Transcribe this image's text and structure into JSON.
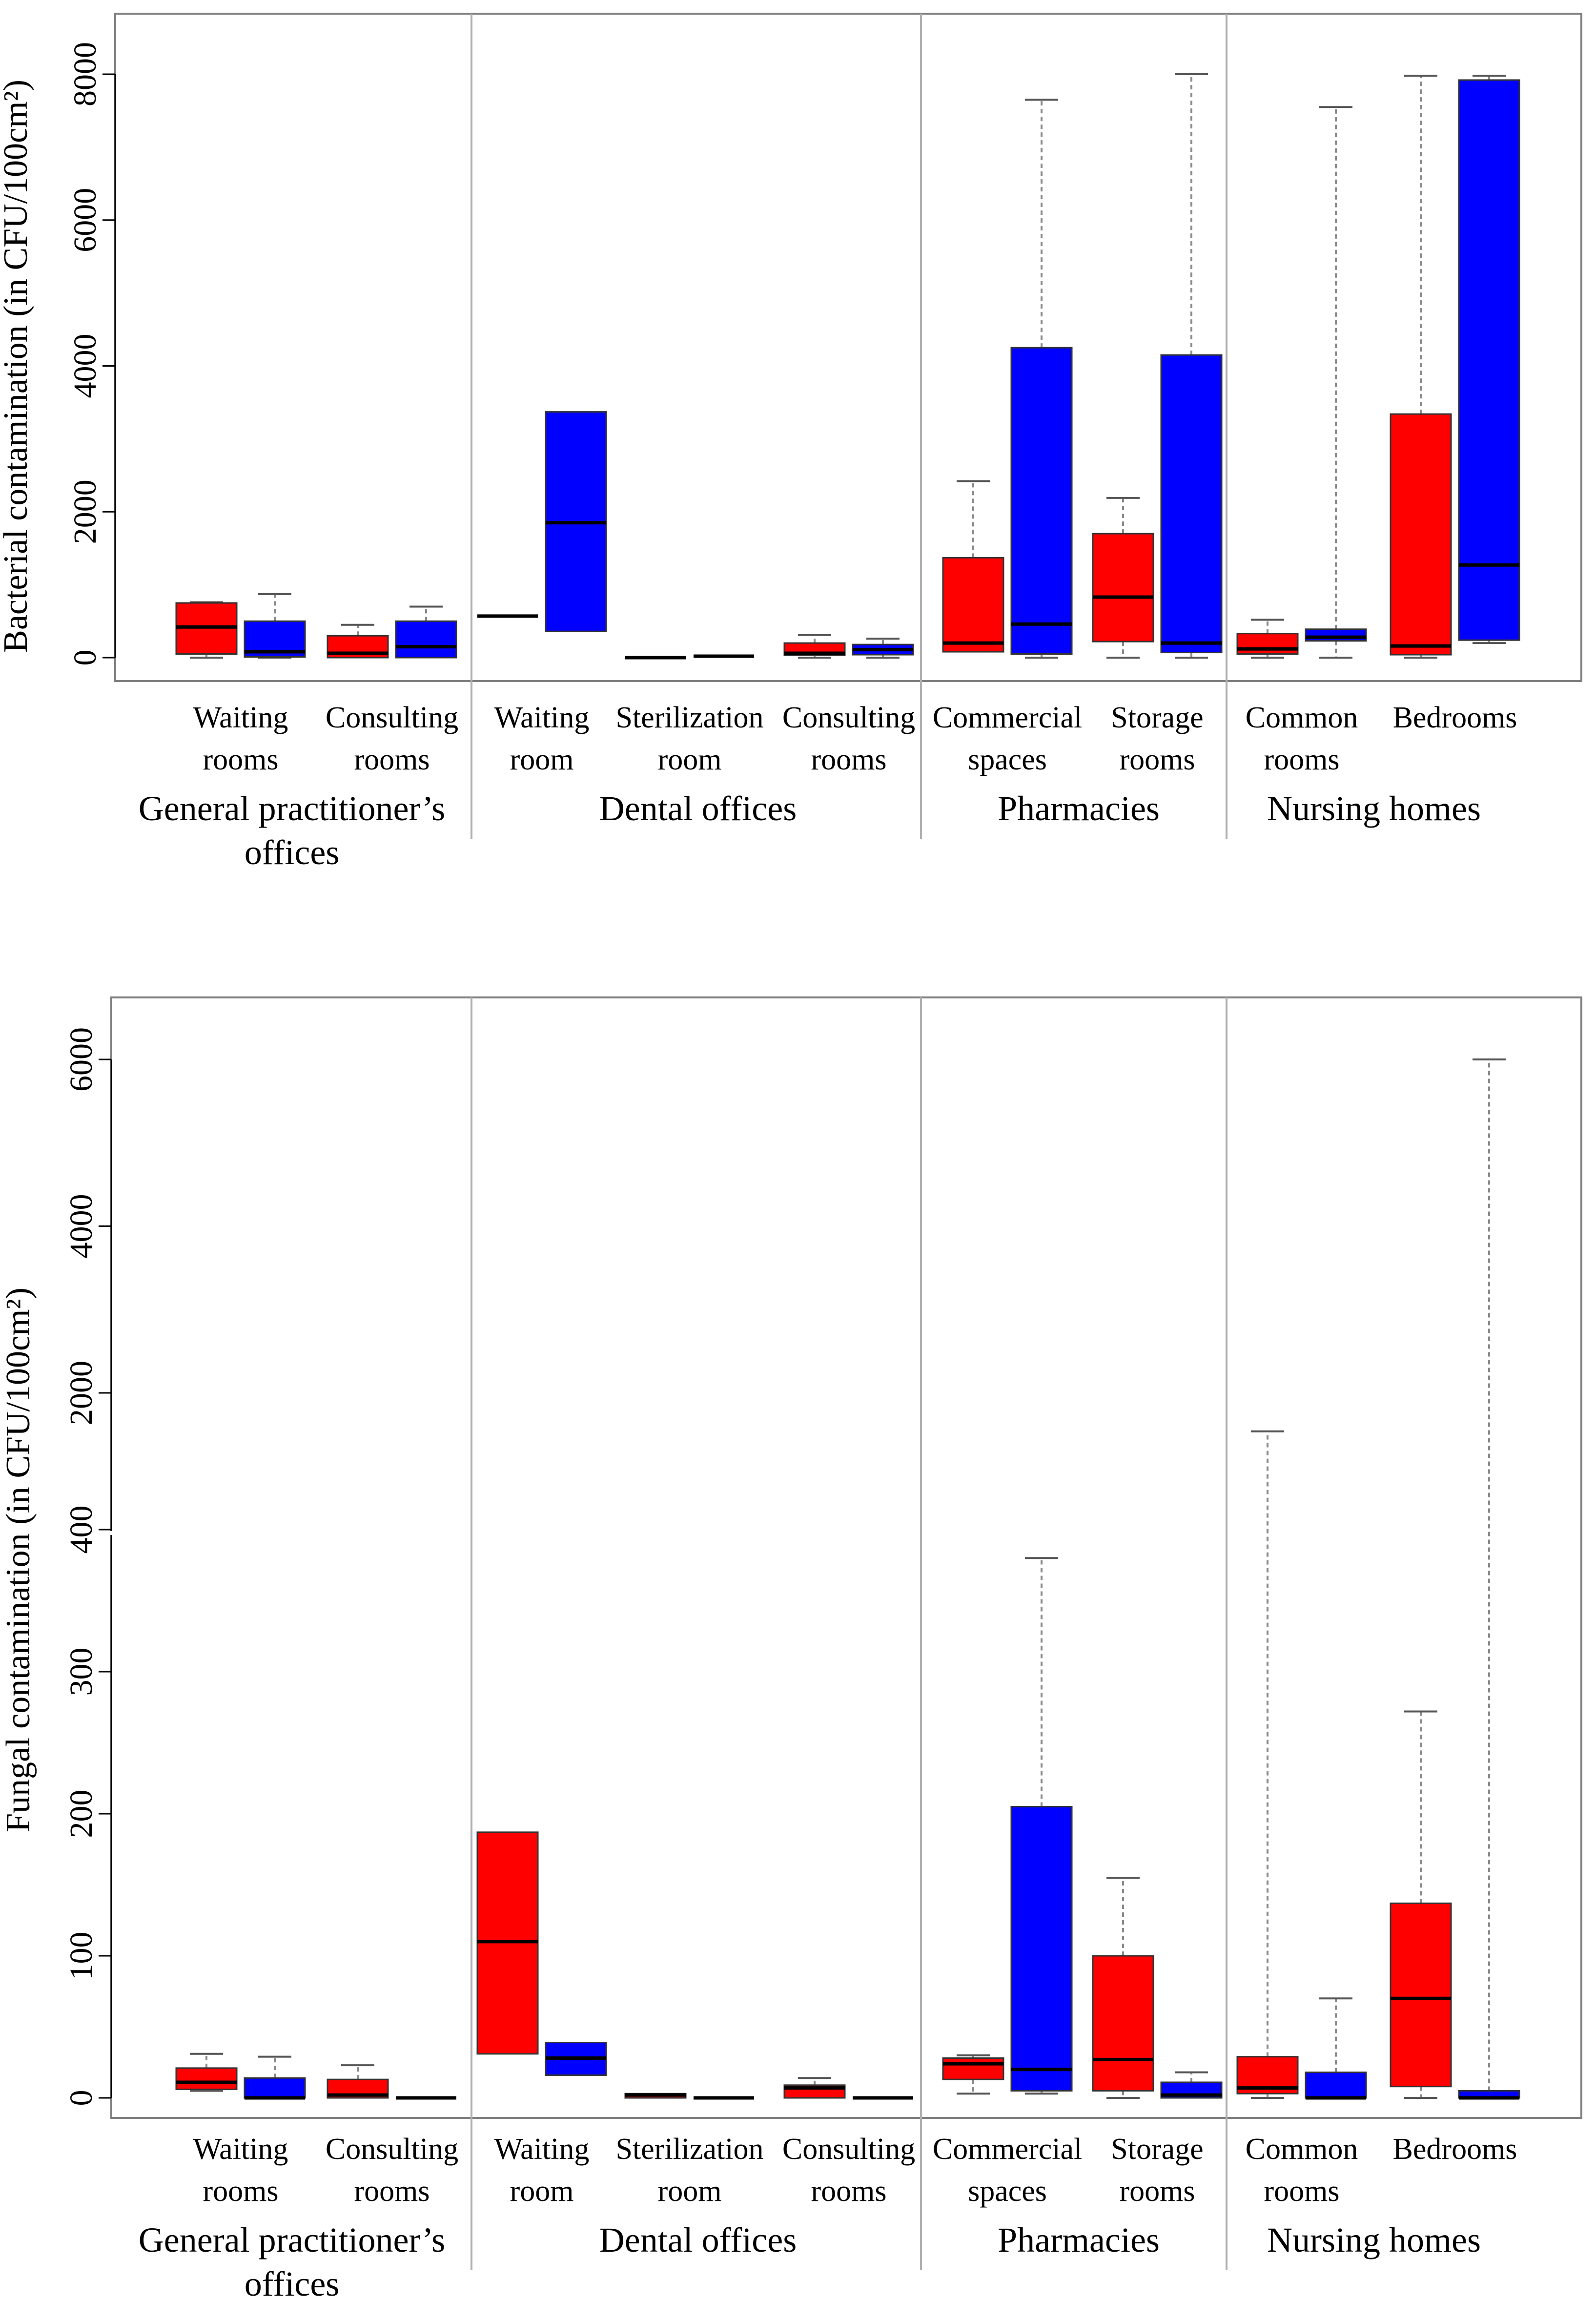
{
  "colors": {
    "red": "#ff0000",
    "blue": "#0000ff"
  },
  "chart_data": [
    {
      "type": "box",
      "ylabel": "Bacterial contamination (in CFU/100cm²)",
      "ylim": [
        0,
        8000
      ],
      "yticks": [
        0,
        2000,
        4000,
        6000,
        8000
      ],
      "groups": [
        {
          "label": "General practitioner’s offices",
          "categories": [
            {
              "label": "Waiting rooms"
            },
            {
              "label": "Consulting rooms"
            }
          ]
        },
        {
          "label": "Dental offices",
          "categories": [
            {
              "label": "Waiting room"
            },
            {
              "label": "Sterilization room"
            },
            {
              "label": "Consulting rooms"
            }
          ]
        },
        {
          "label": "Pharmacies",
          "categories": [
            {
              "label": "Commercial spaces"
            },
            {
              "label": "Storage rooms"
            }
          ]
        },
        {
          "label": "Nursing homes",
          "categories": [
            {
              "label": "Common rooms"
            },
            {
              "label": "Bedrooms"
            }
          ]
        }
      ],
      "boxes": [
        {
          "cat": 0,
          "color": "red",
          "min": 0,
          "q1": 50,
          "median": 420,
          "q3": 750,
          "max": 760
        },
        {
          "cat": 0,
          "color": "blue",
          "min": 0,
          "q1": 10,
          "median": 80,
          "q3": 500,
          "max": 870
        },
        {
          "cat": 1,
          "color": "red",
          "min": 0,
          "q1": 0,
          "median": 60,
          "q3": 300,
          "max": 450
        },
        {
          "cat": 1,
          "color": "blue",
          "min": 0,
          "q1": 0,
          "median": 150,
          "q3": 500,
          "max": 700
        },
        {
          "cat": 2,
          "color": "red",
          "min": 570,
          "q1": 570,
          "median": 570,
          "q3": 570,
          "max": 570
        },
        {
          "cat": 2,
          "color": "blue",
          "min": 360,
          "q1": 360,
          "median": 1850,
          "q3": 3370,
          "max": 3370
        },
        {
          "cat": 3,
          "color": "red",
          "min": 0,
          "q1": 0,
          "median": 0,
          "q3": 0,
          "max": 0
        },
        {
          "cat": 3,
          "color": "blue",
          "min": 20,
          "q1": 20,
          "median": 20,
          "q3": 20,
          "max": 20
        },
        {
          "cat": 4,
          "color": "red",
          "min": 0,
          "q1": 30,
          "median": 60,
          "q3": 200,
          "max": 310
        },
        {
          "cat": 4,
          "color": "blue",
          "min": 0,
          "q1": 40,
          "median": 110,
          "q3": 180,
          "max": 260
        },
        {
          "cat": 5,
          "color": "red",
          "min": 80,
          "q1": 80,
          "median": 200,
          "q3": 1370,
          "max": 2420
        },
        {
          "cat": 5,
          "color": "blue",
          "min": 0,
          "q1": 50,
          "median": 460,
          "q3": 4250,
          "max": 7650
        },
        {
          "cat": 6,
          "color": "red",
          "min": 0,
          "q1": 220,
          "median": 830,
          "q3": 1700,
          "max": 2190
        },
        {
          "cat": 6,
          "color": "blue",
          "min": 0,
          "q1": 70,
          "median": 200,
          "q3": 4150,
          "max": 8000
        },
        {
          "cat": 7,
          "color": "red",
          "min": 0,
          "q1": 50,
          "median": 120,
          "q3": 330,
          "max": 520
        },
        {
          "cat": 7,
          "color": "blue",
          "min": 0,
          "q1": 230,
          "median": 280,
          "q3": 390,
          "max": 7550
        },
        {
          "cat": 8,
          "color": "red",
          "min": 0,
          "q1": 40,
          "median": 160,
          "q3": 3340,
          "max": 7980
        },
        {
          "cat": 8,
          "color": "blue",
          "min": 200,
          "q1": 240,
          "median": 1270,
          "q3": 7920,
          "max": 7980
        }
      ]
    },
    {
      "type": "box",
      "ylabel": "Fungal contamination (in CFU/100cm²)",
      "yscale": "broken",
      "ylim": [
        0,
        6000
      ],
      "yticks": [
        0,
        100,
        200,
        300,
        400,
        2000,
        4000,
        6000
      ],
      "groups": [
        {
          "label": "General practitioner’s offices",
          "categories": [
            {
              "label": "Waiting rooms"
            },
            {
              "label": "Consulting rooms"
            }
          ]
        },
        {
          "label": "Dental offices",
          "categories": [
            {
              "label": "Waiting room"
            },
            {
              "label": "Sterilization room"
            },
            {
              "label": "Consulting rooms"
            }
          ]
        },
        {
          "label": "Pharmacies",
          "categories": [
            {
              "label": "Commercial spaces"
            },
            {
              "label": "Storage rooms"
            }
          ]
        },
        {
          "label": "Nursing homes",
          "categories": [
            {
              "label": "Common rooms"
            },
            {
              "label": "Bedrooms"
            }
          ]
        }
      ],
      "boxes": [
        {
          "cat": 0,
          "color": "red",
          "min": 5,
          "q1": 6,
          "median": 11,
          "q3": 21,
          "max": 31
        },
        {
          "cat": 0,
          "color": "blue",
          "min": 0,
          "q1": 0,
          "median": 0,
          "q3": 14,
          "max": 29
        },
        {
          "cat": 1,
          "color": "red",
          "min": 0,
          "q1": 0,
          "median": 2,
          "q3": 13,
          "max": 23
        },
        {
          "cat": 1,
          "color": "blue",
          "min": 0,
          "q1": 0,
          "median": 0,
          "q3": 0,
          "max": 0
        },
        {
          "cat": 2,
          "color": "red",
          "min": 31,
          "q1": 31,
          "median": 110,
          "q3": 187,
          "max": 187
        },
        {
          "cat": 2,
          "color": "blue",
          "min": 16,
          "q1": 16,
          "median": 28,
          "q3": 39,
          "max": 39
        },
        {
          "cat": 3,
          "color": "red",
          "min": 0,
          "q1": 0,
          "median": 2,
          "q3": 3,
          "max": 3
        },
        {
          "cat": 3,
          "color": "blue",
          "min": 0,
          "q1": 0,
          "median": 0,
          "q3": 0,
          "max": 0
        },
        {
          "cat": 4,
          "color": "red",
          "min": 0,
          "q1": 0,
          "median": 7,
          "q3": 9,
          "max": 14
        },
        {
          "cat": 4,
          "color": "blue",
          "min": 0,
          "q1": 0,
          "median": 0,
          "q3": 0,
          "max": 0
        },
        {
          "cat": 5,
          "color": "red",
          "min": 3,
          "q1": 13,
          "median": 24,
          "q3": 28,
          "max": 30
        },
        {
          "cat": 5,
          "color": "blue",
          "min": 3,
          "q1": 5,
          "median": 20,
          "q3": 205,
          "max": 380
        },
        {
          "cat": 6,
          "color": "red",
          "min": 0,
          "q1": 5,
          "median": 27,
          "q3": 100,
          "max": 155
        },
        {
          "cat": 6,
          "color": "blue",
          "min": 0,
          "q1": 0,
          "median": 2,
          "q3": 11,
          "max": 18
        },
        {
          "cat": 7,
          "color": "red",
          "min": 0,
          "q1": 3,
          "median": 7,
          "q3": 29,
          "max": 1550
        },
        {
          "cat": 7,
          "color": "blue",
          "min": 0,
          "q1": 0,
          "median": 0,
          "q3": 18,
          "max": 70
        },
        {
          "cat": 8,
          "color": "red",
          "min": 0,
          "q1": 8,
          "median": 70,
          "q3": 137,
          "max": 272
        },
        {
          "cat": 8,
          "color": "blue",
          "min": 0,
          "q1": 0,
          "median": 0,
          "q3": 5,
          "max": 6000
        }
      ]
    }
  ]
}
